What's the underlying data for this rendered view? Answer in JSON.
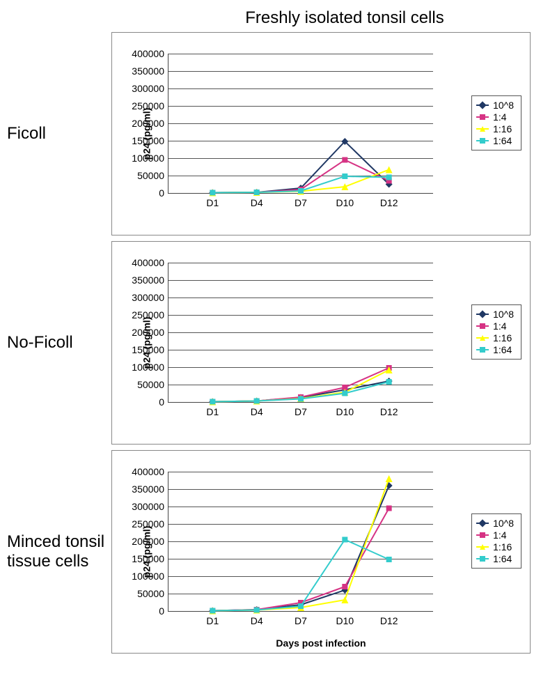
{
  "main_title": "Freshly isolated tonsil cells",
  "common_xlabel": "Days post infection",
  "common_ylabel": "p24 (pg/ml)",
  "ylim": [
    0,
    400000
  ],
  "ytick_step": 50000,
  "x_categories": [
    "D1",
    "D4",
    "D7",
    "D10",
    "D12"
  ],
  "label_fontsize": 14,
  "tick_fontsize": 14,
  "title_fontsize": 24,
  "grid_color": "#555555",
  "axis_color": "#444444",
  "background_color": "#ffffff",
  "panel_border_color": "#888888",
  "legend_items": [
    {
      "label": "10^8",
      "color": "#203864",
      "marker": "diamond"
    },
    {
      "label": "1:4",
      "color": "#d63384",
      "marker": "square"
    },
    {
      "label": "1:16",
      "color": "#ffff00",
      "marker": "triangle"
    },
    {
      "label": "1:64",
      "color": "#33cccc",
      "marker": "square"
    }
  ],
  "charts": [
    {
      "row_label": "Ficoll",
      "series": [
        {
          "legend_index": 0,
          "values": [
            1000,
            2000,
            14000,
            148000,
            25000
          ]
        },
        {
          "legend_index": 1,
          "values": [
            1000,
            2000,
            10000,
            95000,
            35000
          ]
        },
        {
          "legend_index": 2,
          "values": [
            1000,
            2000,
            5000,
            18000,
            67000
          ]
        },
        {
          "legend_index": 3,
          "values": [
            1000,
            2000,
            6000,
            48000,
            45000
          ]
        }
      ]
    },
    {
      "row_label": "No-Ficoll",
      "series": [
        {
          "legend_index": 0,
          "values": [
            1000,
            3000,
            13000,
            35000,
            60000
          ]
        },
        {
          "legend_index": 1,
          "values": [
            1000,
            3000,
            14000,
            42000,
            98000
          ]
        },
        {
          "legend_index": 2,
          "values": [
            1000,
            3000,
            10000,
            28000,
            92000
          ]
        },
        {
          "legend_index": 3,
          "values": [
            1000,
            3000,
            9000,
            25000,
            58000
          ]
        }
      ]
    },
    {
      "row_label": "Minced tonsil tissue cells",
      "series": [
        {
          "legend_index": 0,
          "values": [
            1000,
            4000,
            18000,
            60000,
            360000
          ]
        },
        {
          "legend_index": 1,
          "values": [
            1000,
            4000,
            24000,
            70000,
            295000
          ]
        },
        {
          "legend_index": 2,
          "values": [
            1000,
            3000,
            10000,
            32000,
            380000
          ]
        },
        {
          "legend_index": 3,
          "values": [
            1000,
            3000,
            14000,
            205000,
            148000
          ]
        }
      ]
    }
  ]
}
